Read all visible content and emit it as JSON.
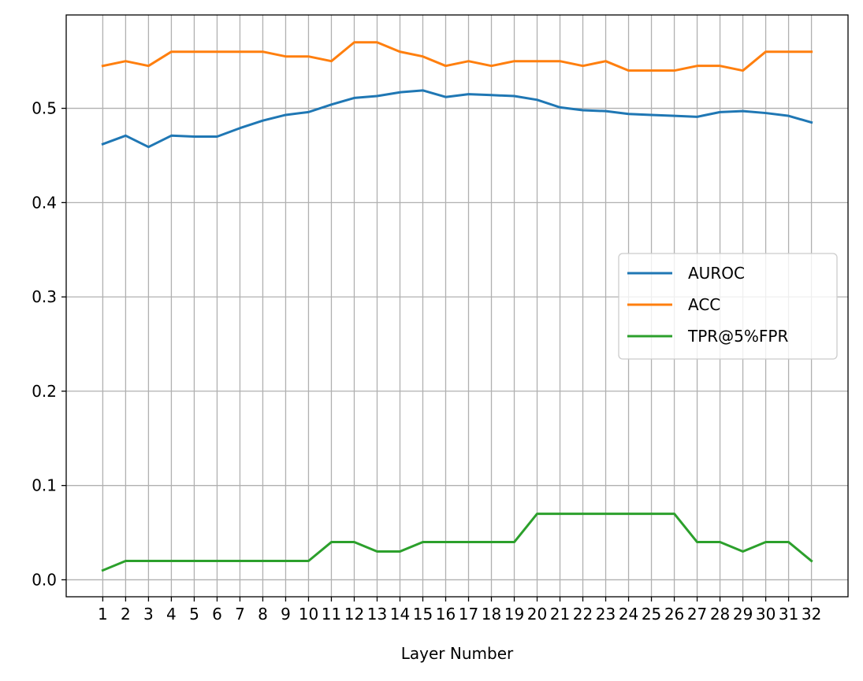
{
  "chart_data": {
    "type": "line",
    "xlabel": "Layer Number",
    "ylabel": "",
    "title": "",
    "x": [
      1,
      2,
      3,
      4,
      5,
      6,
      7,
      8,
      9,
      10,
      11,
      12,
      13,
      14,
      15,
      16,
      17,
      18,
      19,
      20,
      21,
      22,
      23,
      24,
      25,
      26,
      27,
      28,
      29,
      30,
      31,
      32
    ],
    "xlim": [
      -0.6,
      33.6
    ],
    "ylim": [
      -0.018,
      0.599
    ],
    "yticks": [
      0.0,
      0.1,
      0.2,
      0.3,
      0.4,
      0.5
    ],
    "ytick_labels": [
      "0.0",
      "0.1",
      "0.2",
      "0.3",
      "0.4",
      "0.5"
    ],
    "grid": true,
    "legend_position": "center-right",
    "series": [
      {
        "name": "AUROC",
        "color": "#1f77b4",
        "values": [
          0.462,
          0.471,
          0.459,
          0.471,
          0.47,
          0.47,
          0.479,
          0.487,
          0.493,
          0.496,
          0.504,
          0.511,
          0.513,
          0.517,
          0.519,
          0.512,
          0.515,
          0.514,
          0.513,
          0.509,
          0.501,
          0.498,
          0.497,
          0.494,
          0.493,
          0.492,
          0.491,
          0.496,
          0.497,
          0.495,
          0.492,
          0.485
        ]
      },
      {
        "name": "ACC",
        "color": "#ff7f0e",
        "values": [
          0.545,
          0.55,
          0.545,
          0.56,
          0.56,
          0.56,
          0.56,
          0.56,
          0.555,
          0.555,
          0.55,
          0.57,
          0.57,
          0.56,
          0.555,
          0.545,
          0.55,
          0.545,
          0.55,
          0.55,
          0.55,
          0.545,
          0.55,
          0.54,
          0.54,
          0.54,
          0.545,
          0.545,
          0.54,
          0.56,
          0.56,
          0.56
        ]
      },
      {
        "name": "TPR@5%FPR",
        "color": "#2ca02c",
        "values": [
          0.01,
          0.02,
          0.02,
          0.02,
          0.02,
          0.02,
          0.02,
          0.02,
          0.02,
          0.02,
          0.04,
          0.04,
          0.03,
          0.03,
          0.04,
          0.04,
          0.04,
          0.04,
          0.04,
          0.07,
          0.07,
          0.07,
          0.07,
          0.07,
          0.07,
          0.07,
          0.04,
          0.04,
          0.03,
          0.04,
          0.04,
          0.02
        ]
      }
    ]
  }
}
